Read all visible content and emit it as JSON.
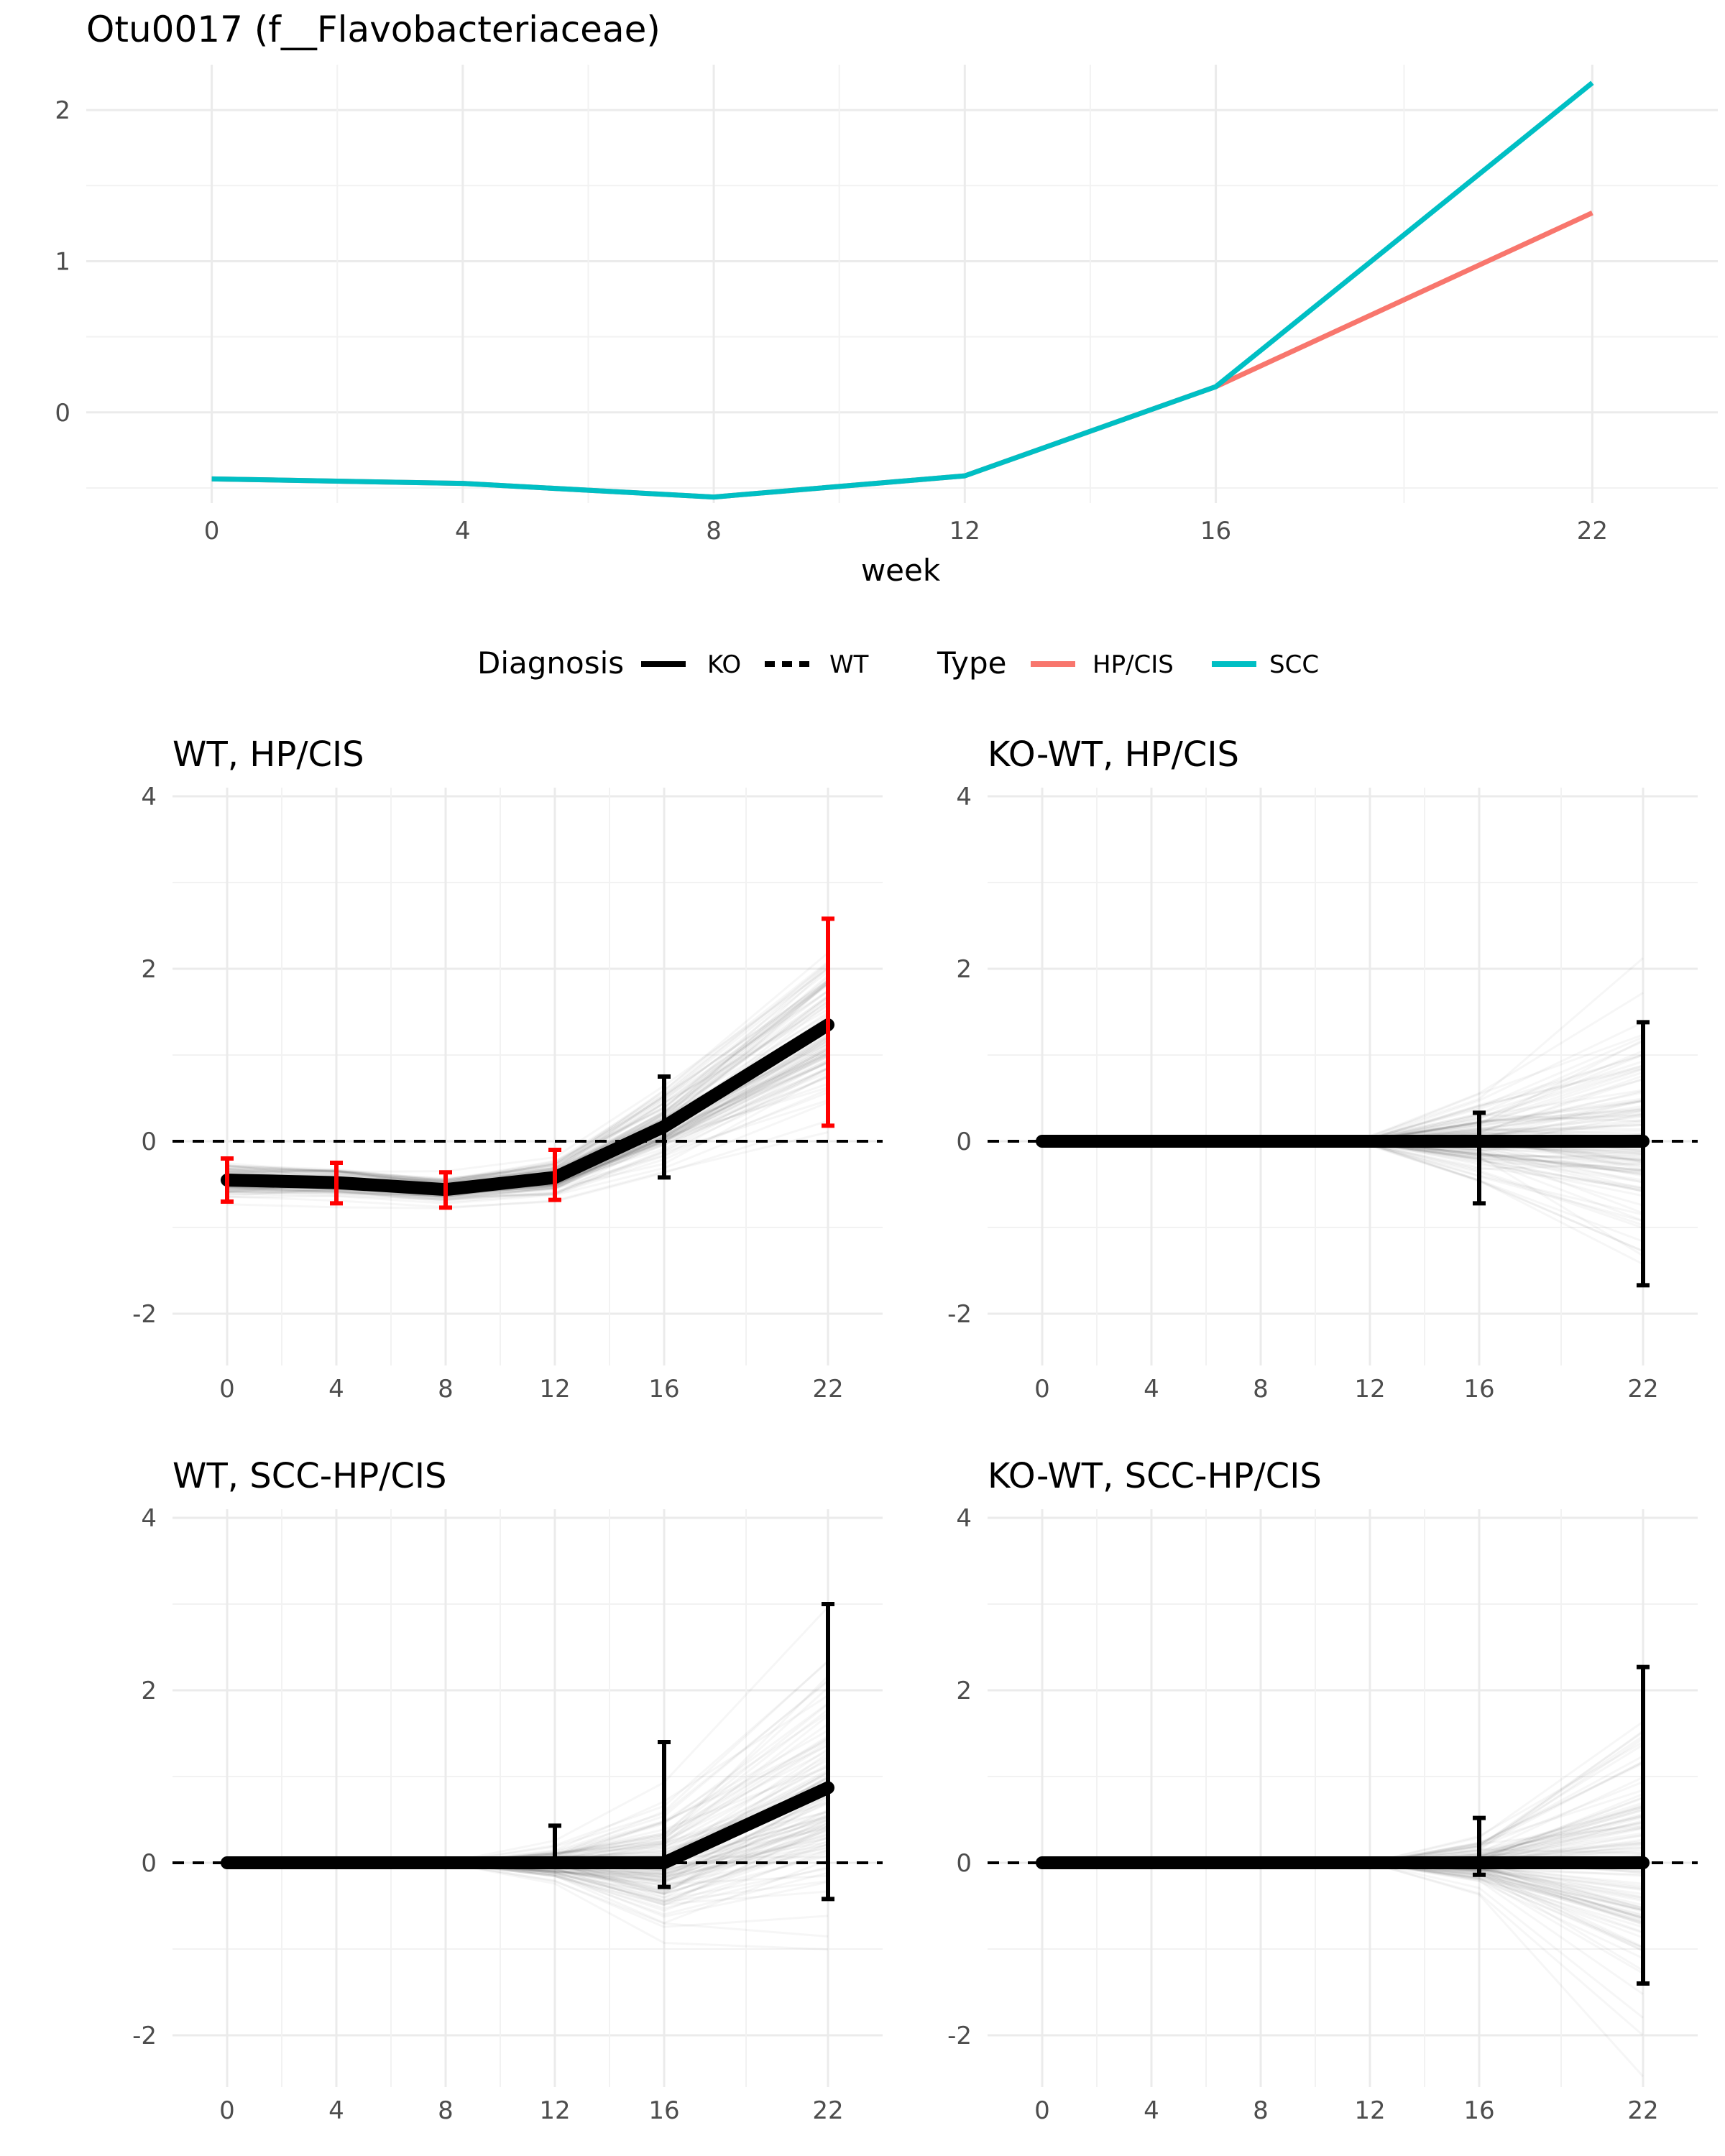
{
  "figure_title": "Otu0017 (f__Flavobacteriaceae)",
  "legend": {
    "diagnosis_title": "Diagnosis",
    "diagnosis_items": [
      {
        "label": "KO",
        "linetype": "solid"
      },
      {
        "label": "WT",
        "linetype": "dashed"
      }
    ],
    "type_title": "Type",
    "type_items": [
      {
        "label": "HP/CIS",
        "color": "#f8766d"
      },
      {
        "label": "SCC",
        "color": "#00bfc4"
      }
    ]
  },
  "colors": {
    "hp_cis": "#f8766d",
    "scc": "#00bfc4",
    "significant": "#ff0000",
    "estimate": "#000000",
    "grid": "#ebebeb"
  },
  "chart_data": [
    {
      "type": "line",
      "title": "Otu0017 (f__Flavobacteriaceae)",
      "xlabel": "week",
      "ylabel": "",
      "x": [
        0,
        4,
        8,
        12,
        16,
        22
      ],
      "xlim": [
        -2,
        24
      ],
      "ylim": [
        -0.6,
        2.3
      ],
      "yticks": [
        0,
        1,
        2
      ],
      "grid": true,
      "series": [
        {
          "name": "HP/CIS",
          "color": "#f8766d",
          "values": [
            -0.44,
            -0.47,
            -0.56,
            -0.42,
            0.17,
            1.32
          ]
        },
        {
          "name": "SCC",
          "color": "#00bfc4",
          "values": [
            -0.44,
            -0.47,
            -0.56,
            -0.42,
            0.17,
            2.18
          ]
        }
      ]
    },
    {
      "type": "line",
      "title": "WT, HP/CIS",
      "x": [
        0,
        4,
        8,
        12,
        16,
        22
      ],
      "xlim": [
        -2,
        24
      ],
      "ylim": [
        -2.6,
        4.1
      ],
      "yticks": [
        -2,
        0,
        2,
        4
      ],
      "reference_line": 0,
      "estimate": [
        -0.45,
        -0.48,
        -0.56,
        -0.42,
        0.17,
        1.35
      ],
      "lower": [
        -0.7,
        -0.72,
        -0.77,
        -0.68,
        -0.42,
        0.18
      ],
      "upper": [
        -0.2,
        -0.25,
        -0.36,
        -0.1,
        0.75,
        2.58
      ],
      "significant": [
        true,
        true,
        true,
        true,
        false,
        true
      ]
    },
    {
      "type": "line",
      "title": "KO-WT, HP/CIS",
      "x": [
        0,
        4,
        8,
        12,
        16,
        22
      ],
      "xlim": [
        -2,
        24
      ],
      "ylim": [
        -2.6,
        4.1
      ],
      "yticks": [
        -2,
        0,
        2,
        4
      ],
      "reference_line": 0,
      "estimate": [
        0,
        0,
        0,
        0,
        0,
        0
      ],
      "lower": [
        0,
        0,
        0,
        -0.05,
        -0.72,
        -1.67
      ],
      "upper": [
        0,
        0,
        0,
        0.05,
        0.33,
        1.38
      ],
      "significant": [
        false,
        false,
        false,
        false,
        false,
        false
      ]
    },
    {
      "type": "line",
      "title": "WT, SCC-HP/CIS",
      "x": [
        0,
        4,
        8,
        12,
        16,
        22
      ],
      "xlim": [
        -2,
        24
      ],
      "ylim": [
        -2.6,
        4.1
      ],
      "yticks": [
        -2,
        0,
        2,
        4
      ],
      "reference_line": 0,
      "estimate": [
        0,
        0,
        0,
        0,
        0,
        0.87
      ],
      "lower": [
        0,
        0,
        0,
        0,
        -0.28,
        -0.42
      ],
      "upper": [
        0,
        0,
        0,
        0.43,
        1.4,
        3.0
      ],
      "significant": [
        false,
        false,
        false,
        false,
        false,
        false
      ]
    },
    {
      "type": "line",
      "title": "KO-WT, SCC-HP/CIS",
      "x": [
        0,
        4,
        8,
        12,
        16,
        22
      ],
      "xlim": [
        -2,
        24
      ],
      "ylim": [
        -2.6,
        4.1
      ],
      "yticks": [
        -2,
        0,
        2,
        4
      ],
      "reference_line": 0,
      "estimate": [
        0,
        0,
        0,
        0,
        0,
        0
      ],
      "lower": [
        0,
        0,
        0,
        0,
        -0.14,
        -1.4
      ],
      "upper": [
        0,
        0,
        0,
        0,
        0.52,
        2.27
      ],
      "significant": [
        false,
        false,
        false,
        false,
        false,
        false
      ]
    }
  ]
}
